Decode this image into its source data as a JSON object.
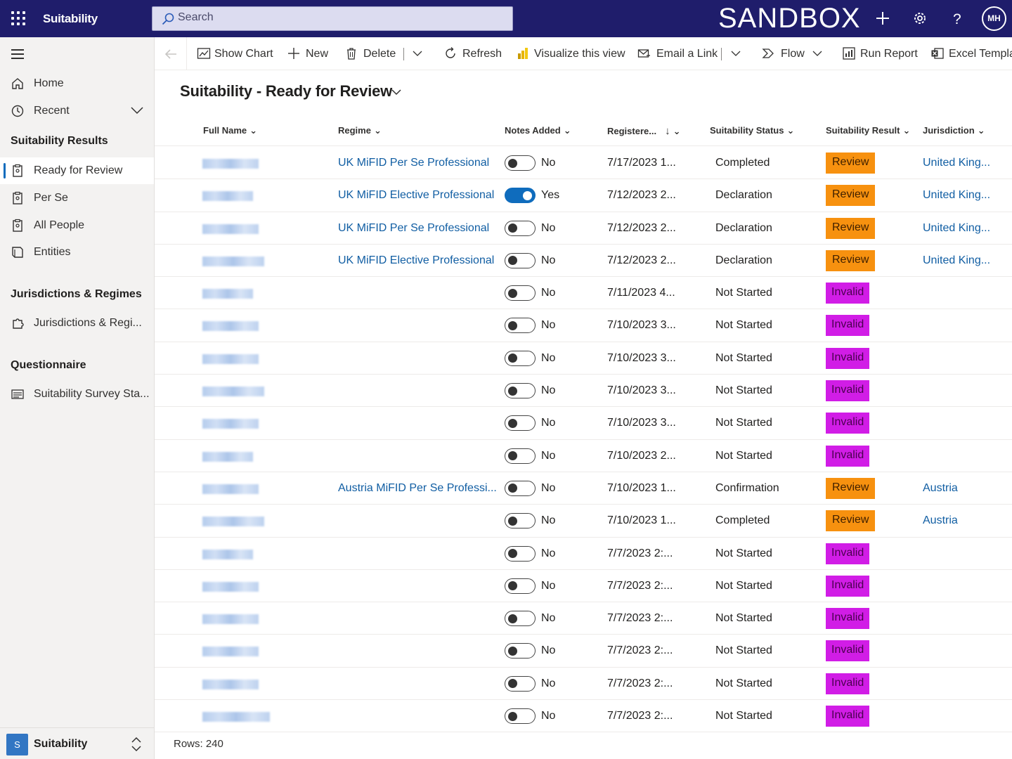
{
  "topbar": {
    "app_title": "Suitability",
    "search_placeholder": "Search",
    "environment": "SANDBOX",
    "avatar_initials": "MH"
  },
  "sidebar": {
    "home": "Home",
    "recent": "Recent",
    "group1": "Suitability Results",
    "items1": [
      "Ready for Review",
      "Per Se",
      "All People",
      "Entities"
    ],
    "group2": "Jurisdictions & Regimes",
    "items2": [
      "Jurisdictions & Regi..."
    ],
    "group3": "Questionnaire",
    "items3": [
      "Suitability Survey Sta..."
    ],
    "area_badge": "S",
    "area_name": "Suitability"
  },
  "commands": {
    "show_chart": "Show Chart",
    "new": "New",
    "delete": "Delete",
    "refresh": "Refresh",
    "visualize": "Visualize this view",
    "email_link": "Email a Link",
    "flow": "Flow",
    "run_report": "Run Report",
    "excel_templates": "Excel Templates"
  },
  "view": {
    "title": "Suitability - Ready for Review"
  },
  "columns": {
    "full_name": "Full Name",
    "regime": "Regime",
    "notes_added": "Notes Added",
    "registered": "Registere...",
    "status": "Suitability Status",
    "result": "Suitability Result",
    "jurisdiction": "Jurisdiction"
  },
  "rows": [
    {
      "regime": "UK MiFID Per Se Professional",
      "notes": "No",
      "registered": "7/17/2023 1...",
      "status": "Completed",
      "result": "Review",
      "jurisdiction": "United King..."
    },
    {
      "regime": "UK MiFID Elective Professional",
      "notes": "Yes",
      "registered": "7/12/2023 2...",
      "status": "Declaration",
      "result": "Review",
      "jurisdiction": "United King..."
    },
    {
      "regime": "UK MiFID Per Se Professional",
      "notes": "No",
      "registered": "7/12/2023 2...",
      "status": "Declaration",
      "result": "Review",
      "jurisdiction": "United King..."
    },
    {
      "regime": "UK MiFID Elective Professional",
      "notes": "No",
      "registered": "7/12/2023 2...",
      "status": "Declaration",
      "result": "Review",
      "jurisdiction": "United King..."
    },
    {
      "regime": "",
      "notes": "No",
      "registered": "7/11/2023 4...",
      "status": "Not Started",
      "result": "Invalid",
      "jurisdiction": ""
    },
    {
      "regime": "",
      "notes": "No",
      "registered": "7/10/2023 3...",
      "status": "Not Started",
      "result": "Invalid",
      "jurisdiction": ""
    },
    {
      "regime": "",
      "notes": "No",
      "registered": "7/10/2023 3...",
      "status": "Not Started",
      "result": "Invalid",
      "jurisdiction": ""
    },
    {
      "regime": "",
      "notes": "No",
      "registered": "7/10/2023 3...",
      "status": "Not Started",
      "result": "Invalid",
      "jurisdiction": ""
    },
    {
      "regime": "",
      "notes": "No",
      "registered": "7/10/2023 3...",
      "status": "Not Started",
      "result": "Invalid",
      "jurisdiction": ""
    },
    {
      "regime": "",
      "notes": "No",
      "registered": "7/10/2023 2...",
      "status": "Not Started",
      "result": "Invalid",
      "jurisdiction": ""
    },
    {
      "regime": "Austria MiFID Per Se Professi...",
      "notes": "No",
      "registered": "7/10/2023 1...",
      "status": "Confirmation",
      "result": "Review",
      "jurisdiction": "Austria"
    },
    {
      "regime": "",
      "notes": "No",
      "registered": "7/10/2023 1...",
      "status": "Completed",
      "result": "Review",
      "jurisdiction": "Austria"
    },
    {
      "regime": "",
      "notes": "No",
      "registered": "7/7/2023 2:...",
      "status": "Not Started",
      "result": "Invalid",
      "jurisdiction": ""
    },
    {
      "regime": "",
      "notes": "No",
      "registered": "7/7/2023 2:...",
      "status": "Not Started",
      "result": "Invalid",
      "jurisdiction": ""
    },
    {
      "regime": "",
      "notes": "No",
      "registered": "7/7/2023 2:...",
      "status": "Not Started",
      "result": "Invalid",
      "jurisdiction": ""
    },
    {
      "regime": "",
      "notes": "No",
      "registered": "7/7/2023 2:...",
      "status": "Not Started",
      "result": "Invalid",
      "jurisdiction": ""
    },
    {
      "regime": "",
      "notes": "No",
      "registered": "7/7/2023 2:...",
      "status": "Not Started",
      "result": "Invalid",
      "jurisdiction": ""
    },
    {
      "regime": "",
      "notes": "No",
      "registered": "7/7/2023 2:...",
      "status": "Not Started",
      "result": "Invalid",
      "jurisdiction": ""
    }
  ],
  "footer": {
    "rows_label": "Rows: 240"
  },
  "colors": {
    "topbar": "#1f1d6b",
    "review": "#f7910f",
    "invalid": "#d11de6",
    "link": "#115ea3",
    "toggle_on": "#0f6cbd"
  },
  "icons": [
    "waffle-icon",
    "search-icon",
    "plus-icon",
    "gear-icon",
    "help-icon",
    "hamburger-icon",
    "home-icon",
    "clock-icon",
    "clipboard-icon",
    "book-icon",
    "puzzle-icon",
    "list-icon",
    "back-arrow-icon",
    "chart-icon",
    "trash-icon",
    "refresh-icon",
    "powerbi-icon",
    "email-icon",
    "flow-icon",
    "report-icon",
    "excel-icon"
  ]
}
